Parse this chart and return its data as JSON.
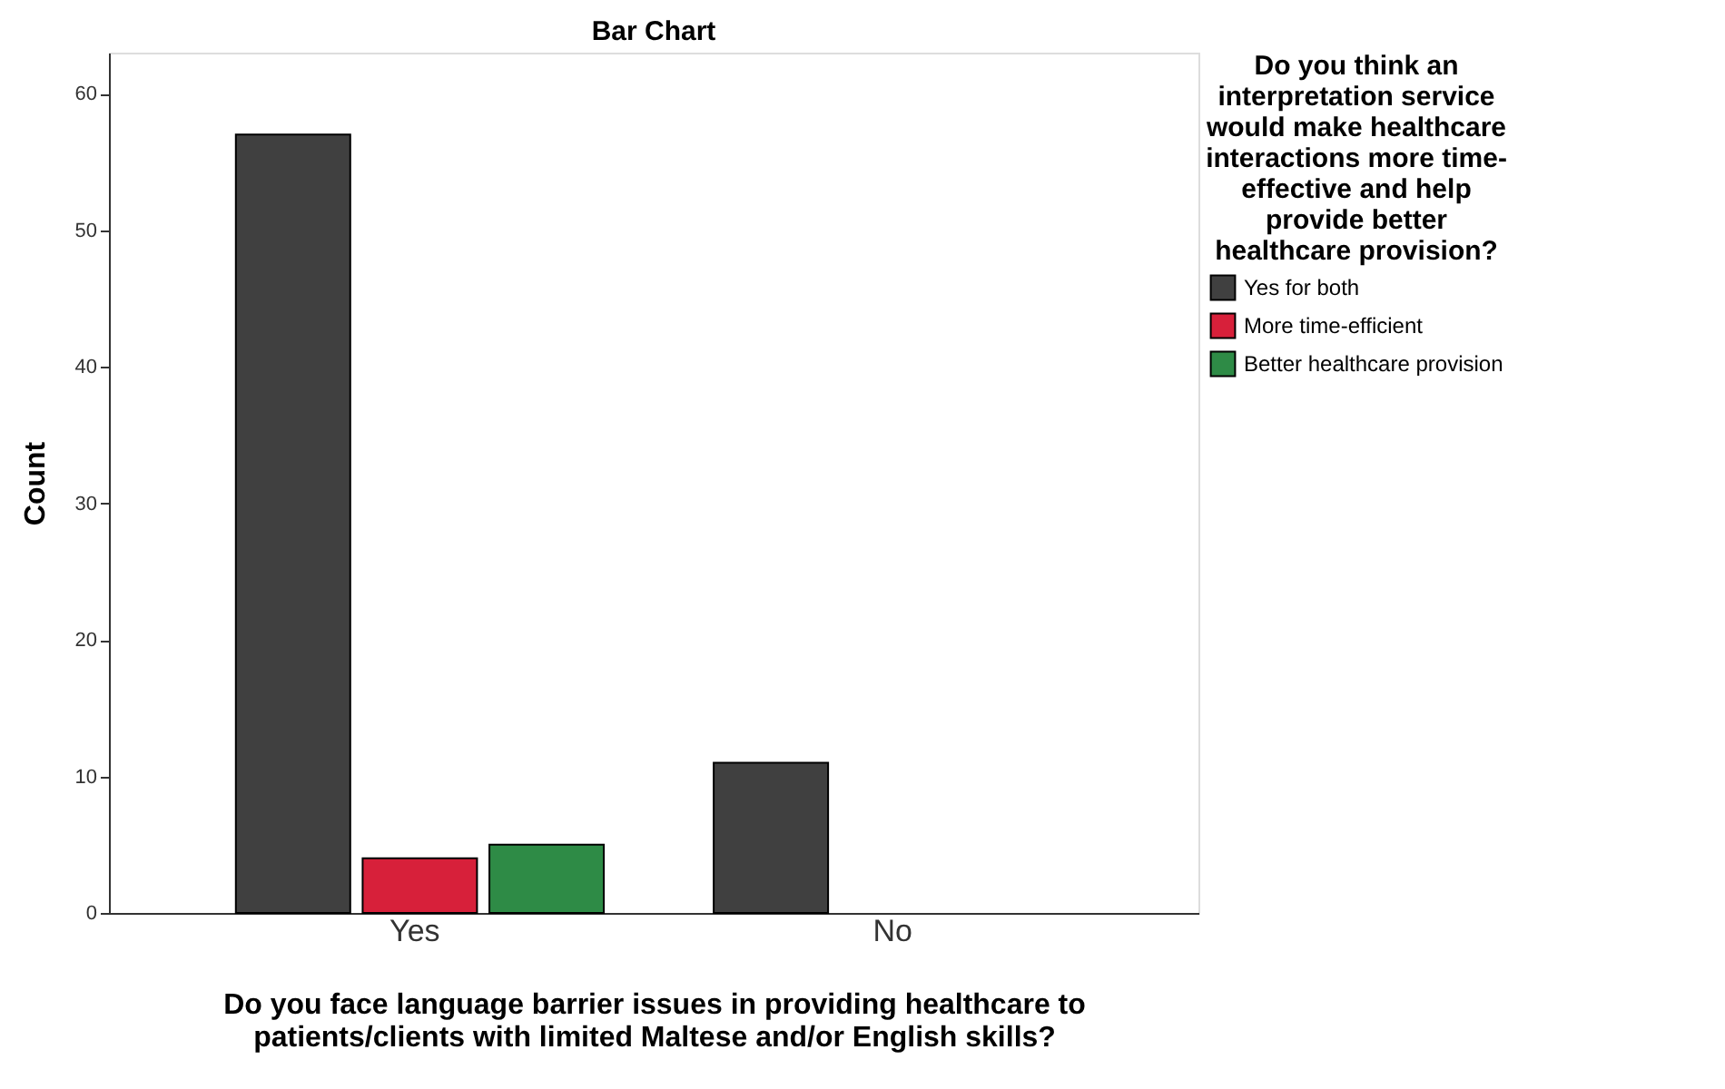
{
  "chart_data": {
    "type": "bar",
    "title": "Bar Chart",
    "xlabel": "Do you face language barrier issues in providing healthcare to patients/clients with limited Maltese and/or English skills?",
    "ylabel": "Count",
    "legend_title": "Do you think an interpretation service would make healthcare interactions more time-effective and help provide better healthcare provision?",
    "categories": [
      "Yes",
      "No"
    ],
    "series": [
      {
        "name": "Yes for both",
        "color": "#404040",
        "values": [
          57,
          11
        ]
      },
      {
        "name": "More time-efficient",
        "color": "#d7203a",
        "values": [
          4,
          null
        ]
      },
      {
        "name": "Better healthcare provision",
        "color": "#2e8b46",
        "values": [
          5,
          null
        ]
      }
    ],
    "ylim": [
      0,
      63
    ],
    "yticks": [
      0,
      10,
      20,
      30,
      40,
      50,
      60
    ],
    "grid": false,
    "legend": "right"
  }
}
